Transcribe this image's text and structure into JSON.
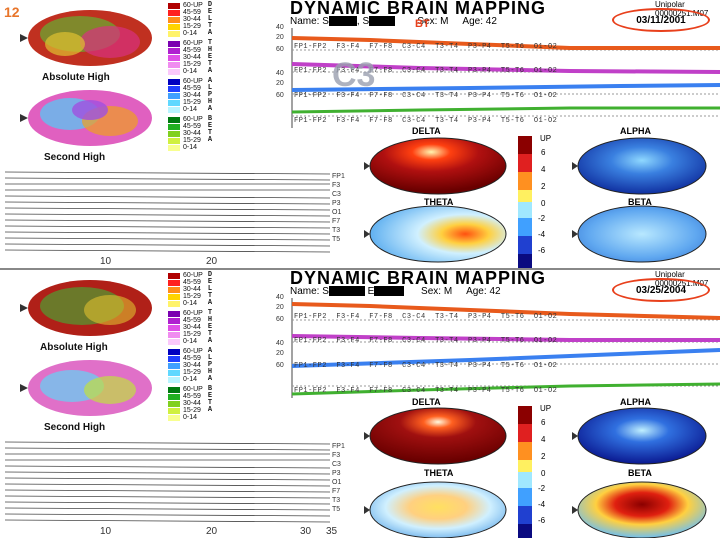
{
  "slide_number": "12",
  "overlay_label": "C3",
  "bt_marker": "BT",
  "panels": [
    {
      "title": "DYNAMIC BRAIN MAPPING",
      "name_label": "Name:",
      "sex_label": "Sex:",
      "sex": "M",
      "age_label": "Age:",
      "age": "42",
      "date": "03/11/2001",
      "unipolar": "Unipolar",
      "unipolar_id": "00000251.M07",
      "map_labels": {
        "absolute": "Absolute High",
        "second": "Second High"
      },
      "waves": [
        "DELTA",
        "ALPHA",
        "THETA",
        "BETA"
      ],
      "scale_top": "UP",
      "scale_ticks": [
        "6",
        "4",
        "2",
        "0",
        "-2",
        "-4",
        "-6"
      ],
      "chart_axis": [
        "40",
        "20",
        "60",
        "40",
        "20",
        "60",
        "40",
        "20",
        "60",
        "40",
        "20"
      ],
      "channels": [
        "FP1-FP2",
        "F3-F4",
        "F7-F8",
        "C3-C4",
        "T3-T4",
        "P3-P4",
        "T5-T6",
        "O1-O2"
      ],
      "trace_axis": [
        "10",
        "20"
      ],
      "eeg_channels": [
        "FP1",
        "F3",
        "C3",
        "P3",
        "O1",
        "F7",
        "T3",
        "T5"
      ]
    },
    {
      "title": "DYNAMIC BRAIN MAPPING",
      "name_label": "Name:",
      "sex_label": "Sex:",
      "sex": "M",
      "age_label": "Age:",
      "age": "42",
      "date": "03/25/2004",
      "unipolar": "Unipolar",
      "unipolar_id": "00000251.M07",
      "map_labels": {
        "absolute": "Absolute High",
        "second": "Second High"
      },
      "waves": [
        "DELTA",
        "ALPHA",
        "THETA",
        "BETA"
      ],
      "scale_top": "UP",
      "scale_ticks": [
        "6",
        "4",
        "2",
        "0",
        "-2",
        "-4",
        "-6"
      ],
      "chart_axis": [
        "40",
        "20",
        "60",
        "40",
        "20",
        "60",
        "40",
        "20",
        "60",
        "40",
        "20"
      ],
      "channels": [
        "FP1-FP2",
        "F3-F4",
        "F7-F8",
        "C3-C4",
        "T3-T4",
        "P3-P4",
        "T5-T6",
        "O1-O2"
      ],
      "trace_axis": [
        "10",
        "20",
        "30",
        "35"
      ],
      "eeg_channels": [
        "FP1",
        "F3",
        "C3",
        "P3",
        "O1",
        "F7",
        "T3",
        "T5"
      ]
    }
  ],
  "legends": [
    {
      "band": "DELTA",
      "letters": [
        "D",
        "E",
        "L",
        "T",
        "A"
      ],
      "ranges": [
        "60-UP",
        "45-59",
        "30-44",
        "15-29",
        "0-14"
      ],
      "colors": [
        "#b00000",
        "#ff2020",
        "#ff8c1a",
        "#ffd400",
        "#fff36a"
      ]
    },
    {
      "band": "THETA",
      "letters": [
        "T",
        "H",
        "E",
        "T",
        "A"
      ],
      "ranges": [
        "60-UP",
        "45-59",
        "30-44",
        "15-29",
        "0-14"
      ],
      "colors": [
        "#7a00b0",
        "#b020d0",
        "#e050e8",
        "#f08cf0",
        "#fbc8fb"
      ]
    },
    {
      "band": "ALPHA",
      "letters": [
        "A",
        "L",
        "P",
        "H",
        "A"
      ],
      "ranges": [
        "60-UP",
        "45-59",
        "30-44",
        "15-29",
        "0-14"
      ],
      "colors": [
        "#0000c0",
        "#2040ff",
        "#40a0ff",
        "#60d8ff",
        "#b8f4ff"
      ]
    },
    {
      "band": "BETA",
      "letters": [
        "B",
        "E",
        "T",
        "A"
      ],
      "ranges": [
        "60-UP",
        "45-59",
        "30-44",
        "15-29",
        "0-14"
      ],
      "colors": [
        "#007a10",
        "#20b020",
        "#80d020",
        "#d0f040",
        "#f8ff90"
      ]
    }
  ],
  "colors": {
    "accent": "#e8401c",
    "delta_line": "#e85a1c",
    "theta_line": "#c040c8",
    "alpha_line": "#3a80f0",
    "beta_line": "#40b030"
  }
}
